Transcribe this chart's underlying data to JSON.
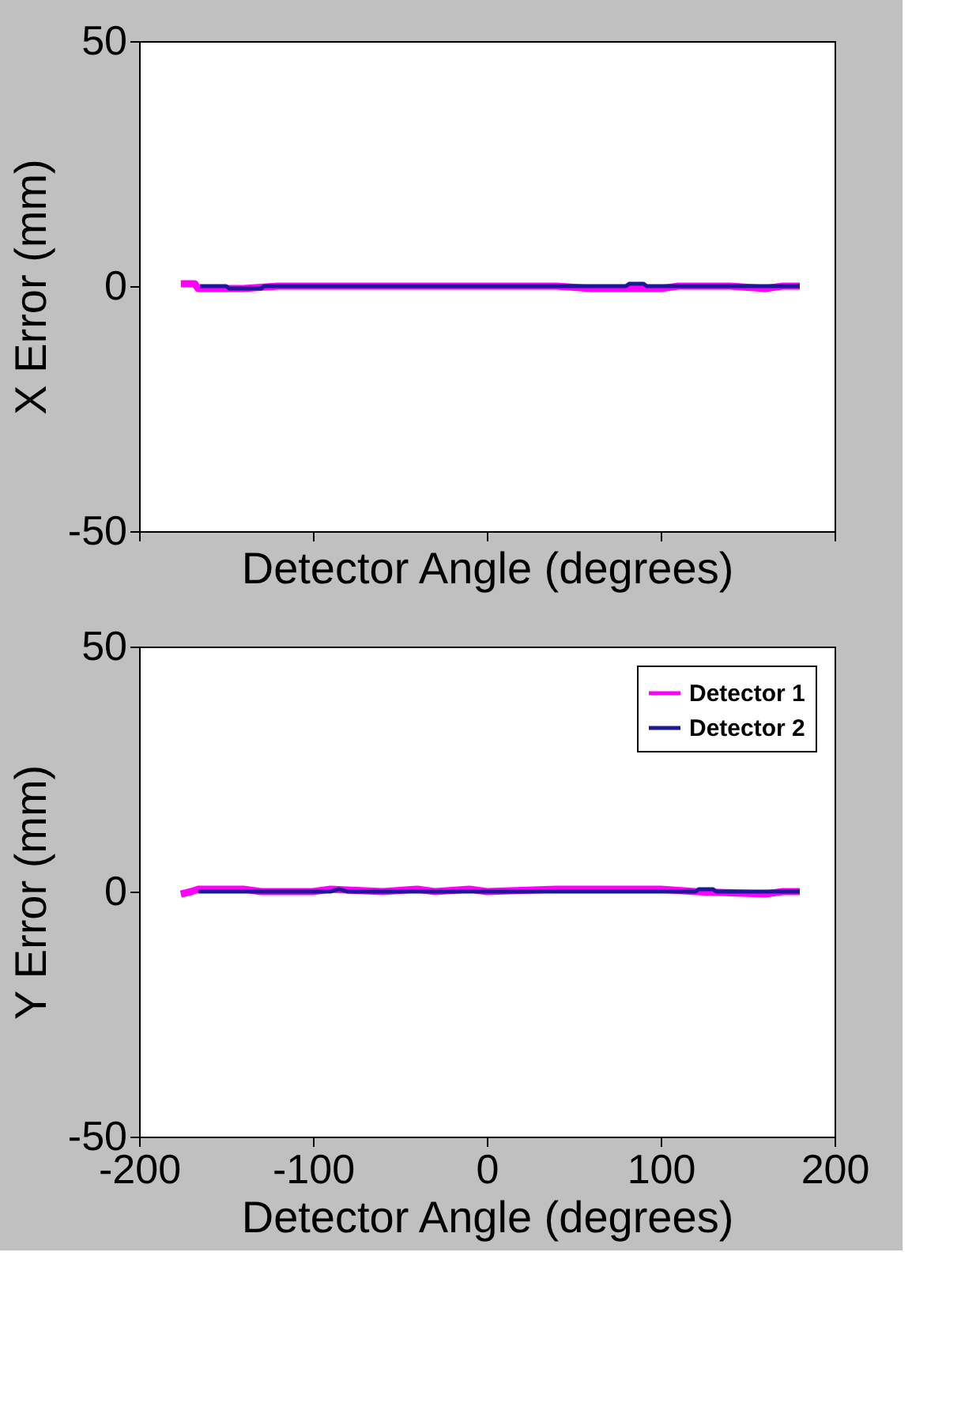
{
  "chart_data": [
    {
      "type": "line",
      "xlabel": "Detector Angle (degrees)",
      "ylabel": "X Error (mm)",
      "xlim": [
        -200,
        200
      ],
      "xticks": [
        {
          "value": -200,
          "label": null
        },
        {
          "value": -100,
          "label": null
        },
        {
          "value": 0,
          "label": null
        },
        {
          "value": 100,
          "label": null
        },
        {
          "value": 200,
          "label": null
        }
      ],
      "ylim": [
        -50,
        50
      ],
      "yticks": [
        -50,
        0,
        50
      ],
      "tick_labels": "y",
      "grid": false,
      "legend": false,
      "series": [
        {
          "color": "#ff00ff",
          "x": [
            -176,
            -168,
            -166,
            -150,
            -140,
            -120,
            -100,
            -40,
            0,
            40,
            60,
            80,
            100,
            110,
            120,
            140,
            160,
            170,
            180
          ],
          "values": [
            0.5,
            0.5,
            -0.5,
            -0.5,
            -0.5,
            0,
            0,
            0,
            0,
            0,
            -0.5,
            -0.5,
            -0.5,
            0,
            0,
            0,
            -0.5,
            0,
            0
          ]
        },
        {
          "color": "#1a1a99",
          "x": [
            -165,
            -150,
            -148,
            -130,
            -128,
            -100,
            -50,
            0,
            50,
            80,
            82,
            90,
            92,
            120,
            160,
            180
          ],
          "values": [
            0,
            0,
            -0.5,
            -0.5,
            0,
            0,
            0,
            0,
            0,
            0,
            0.5,
            0.5,
            0,
            0,
            0,
            0
          ]
        }
      ]
    },
    {
      "type": "line",
      "xlabel": "Detector Angle (degrees)",
      "ylabel": "Y Error (mm)",
      "xlim": [
        -200,
        200
      ],
      "xticks": [
        -200,
        -100,
        0,
        100,
        200
      ],
      "ylim": [
        -50,
        50
      ],
      "yticks": [
        -50,
        0,
        50
      ],
      "grid": false,
      "legend": "top right",
      "series": [
        {
          "name": "Detector 1",
          "color": "#ff00ff",
          "x": [
            -176,
            -170,
            -166,
            -140,
            -130,
            -100,
            -90,
            -60,
            -40,
            -30,
            -10,
            0,
            40,
            60,
            100,
            120,
            160,
            170,
            180
          ],
          "values": [
            -0.5,
            0,
            0.5,
            0.5,
            0,
            0,
            0.5,
            0,
            0.5,
            0,
            0.5,
            0,
            0.5,
            0.5,
            0.5,
            0,
            -0.5,
            0,
            0
          ]
        },
        {
          "name": "Detector 2",
          "color": "#1a1a99",
          "x": [
            -166,
            -100,
            -90,
            -85,
            -80,
            -40,
            0,
            40,
            100,
            120,
            122,
            130,
            132,
            160,
            180
          ],
          "values": [
            0,
            0,
            0,
            0.5,
            0,
            0,
            0,
            0,
            0,
            0,
            0.5,
            0.5,
            0,
            0,
            0
          ]
        }
      ]
    }
  ]
}
